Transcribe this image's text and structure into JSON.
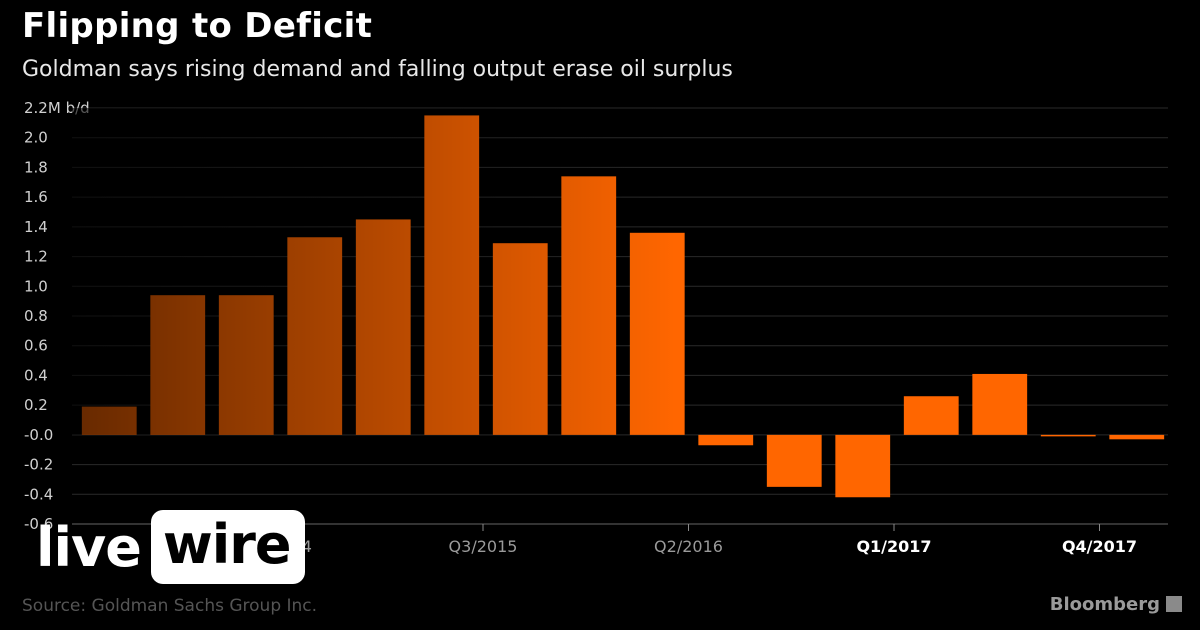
{
  "header": {
    "title": "Flipping to Deficit",
    "subtitle": "Goldman says rising demand and falling output erase oil surplus"
  },
  "footer": {
    "source": "Source: Goldman Sachs Group Inc.",
    "brand": "Bloomberg"
  },
  "logo": {
    "part1": "live",
    "part2": "wire"
  },
  "colors": {
    "bar": "#ff6600",
    "background": "#000000",
    "grid": "#2a2a2a"
  },
  "chart_data": {
    "type": "bar",
    "title": "Flipping to Deficit",
    "subtitle": "Goldman says rising demand and falling output erase oil surplus",
    "ylabel": "",
    "unit": "M b/d",
    "ylim": [
      -0.6,
      2.2
    ],
    "yticks": [
      {
        "value": 2.2,
        "label": "2.2M b/d"
      },
      {
        "value": 2.0,
        "label": "2.0"
      },
      {
        "value": 1.8,
        "label": "1.8"
      },
      {
        "value": 1.6,
        "label": "1.6"
      },
      {
        "value": 1.4,
        "label": "1.4"
      },
      {
        "value": 1.2,
        "label": "1.2"
      },
      {
        "value": 1.0,
        "label": "1.0"
      },
      {
        "value": 0.8,
        "label": "0.8"
      },
      {
        "value": 0.6,
        "label": "0.6"
      },
      {
        "value": 0.4,
        "label": "0.4"
      },
      {
        "value": 0.2,
        "label": "0.2"
      },
      {
        "value": 0.0,
        "label": "-0.0"
      },
      {
        "value": -0.2,
        "label": "-0.2"
      },
      {
        "value": -0.4,
        "label": "-0.4"
      },
      {
        "value": -0.6,
        "label": "-0.6"
      }
    ],
    "xticks": [
      {
        "index": 3,
        "label": "Q4/2014",
        "bold": false
      },
      {
        "index": 6,
        "label": "Q3/2015",
        "bold": false
      },
      {
        "index": 9,
        "label": "Q2/2016",
        "bold": false
      },
      {
        "index": 12,
        "label": "Q1/2017",
        "bold": true
      },
      {
        "index": 15,
        "label": "Q4/2017",
        "bold": true
      }
    ],
    "values": [
      0.19,
      0.94,
      0.94,
      1.33,
      1.45,
      2.15,
      1.29,
      1.74,
      1.36,
      -0.07,
      -0.35,
      -0.42,
      0.26,
      0.41,
      -0.01,
      -0.03
    ],
    "grid": true,
    "legend": "none"
  }
}
